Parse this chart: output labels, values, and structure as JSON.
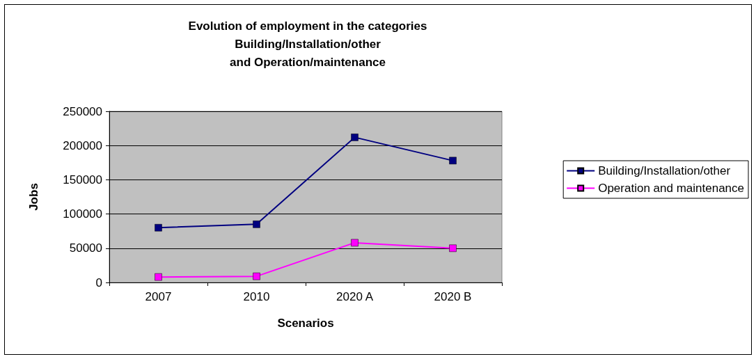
{
  "chart_data": {
    "type": "line",
    "title": "Evolution of employment in the categories\nBuilding/Installation/other\nand Operation/maintenance",
    "xlabel": "Scenarios",
    "ylabel": "Jobs",
    "categories": [
      "2007",
      "2010",
      "2020 A",
      "2020 B"
    ],
    "series": [
      {
        "name": "Building/Installation/other",
        "color": "#000080",
        "values": [
          80000,
          85000,
          212000,
          178000
        ]
      },
      {
        "name": "Operation and maintenance",
        "color": "#ff00ff",
        "values": [
          8000,
          9000,
          58000,
          50000
        ]
      }
    ],
    "ylim": [
      0,
      250000
    ],
    "yticks": [
      0,
      50000,
      100000,
      150000,
      200000,
      250000
    ],
    "grid": "y",
    "legend": "right",
    "marker": "square",
    "line_style": "solid"
  }
}
